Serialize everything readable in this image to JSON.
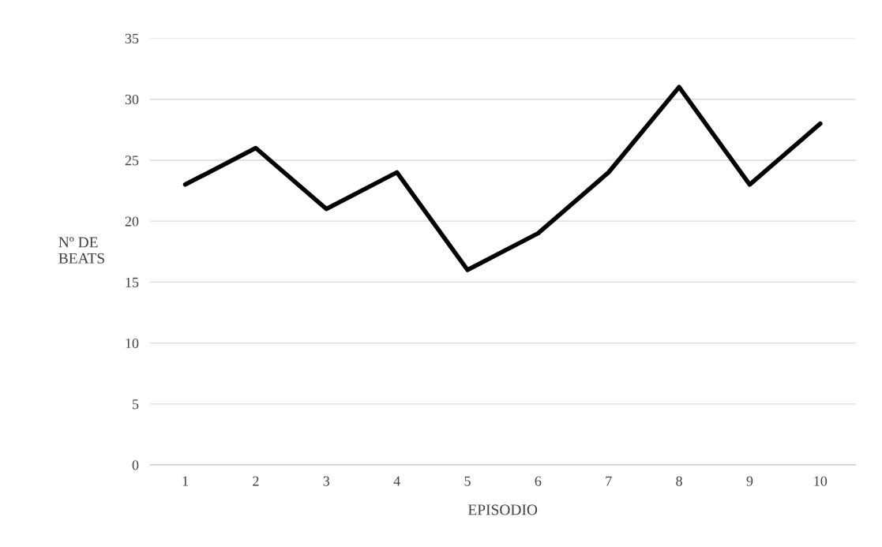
{
  "chart_data": {
    "type": "line",
    "categories": [
      "1",
      "2",
      "3",
      "4",
      "5",
      "6",
      "7",
      "8",
      "9",
      "10"
    ],
    "series": [
      {
        "color": "#000000",
        "values": [
          23,
          26,
          21,
          24,
          16,
          19,
          24,
          31,
          23,
          28
        ]
      }
    ],
    "xlabel": "EPISODIO",
    "ylabel": "Nº DE BEATS",
    "ylim": [
      0,
      35
    ],
    "yticks": [
      0,
      5,
      10,
      15,
      20,
      25,
      30,
      35
    ],
    "grid": "y",
    "marker": "none",
    "line_style": "solid"
  }
}
